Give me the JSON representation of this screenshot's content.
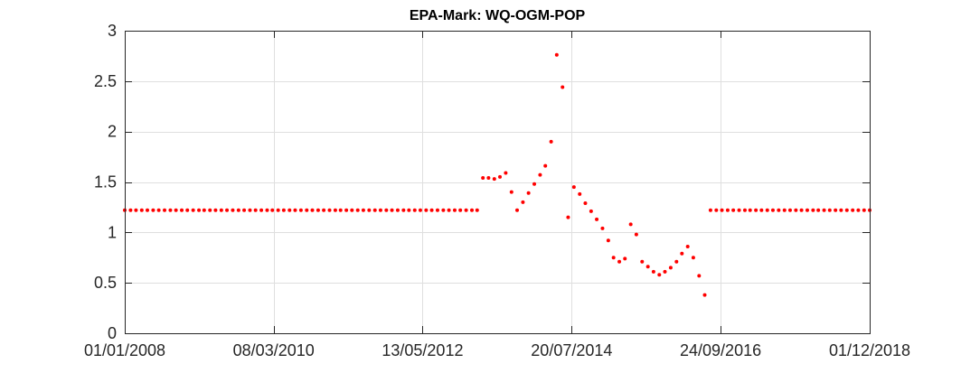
{
  "chart_data": {
    "type": "scatter",
    "title": "EPA-Mark: WQ-OGM-POP",
    "xlabel": "",
    "ylabel": "",
    "x_axis_type": "date",
    "xlim": [
      "2008-01-01",
      "2018-12-01"
    ],
    "ylim": [
      0,
      3
    ],
    "x_ticks": [
      {
        "date": "2008-01-01",
        "label": "01/01/2008"
      },
      {
        "date": "2010-03-08",
        "label": "08/03/2010"
      },
      {
        "date": "2012-05-13",
        "label": "13/05/2012"
      },
      {
        "date": "2014-07-20",
        "label": "20/07/2014"
      },
      {
        "date": "2016-09-24",
        "label": "24/09/2016"
      },
      {
        "date": "2018-12-01",
        "label": "01/12/2018"
      }
    ],
    "y_ticks": [
      0,
      0.5,
      1,
      1.5,
      2,
      2.5,
      3
    ],
    "y_tick_labels": [
      "0",
      "0.5",
      "1",
      "1.5",
      "2",
      "2.5",
      "3"
    ],
    "grid": true,
    "marker_color": "#ff0000",
    "series": [
      {
        "points": [
          {
            "x": "2008-01-01",
            "y": 1.22
          },
          {
            "x": "2008-02-01",
            "y": 1.22
          },
          {
            "x": "2008-03-01",
            "y": 1.22
          },
          {
            "x": "2008-04-01",
            "y": 1.22
          },
          {
            "x": "2008-05-01",
            "y": 1.22
          },
          {
            "x": "2008-06-01",
            "y": 1.22
          },
          {
            "x": "2008-07-01",
            "y": 1.22
          },
          {
            "x": "2008-08-01",
            "y": 1.22
          },
          {
            "x": "2008-09-01",
            "y": 1.22
          },
          {
            "x": "2008-10-01",
            "y": 1.22
          },
          {
            "x": "2008-11-01",
            "y": 1.22
          },
          {
            "x": "2008-12-01",
            "y": 1.22
          },
          {
            "x": "2009-01-01",
            "y": 1.22
          },
          {
            "x": "2009-02-01",
            "y": 1.22
          },
          {
            "x": "2009-03-01",
            "y": 1.22
          },
          {
            "x": "2009-04-01",
            "y": 1.22
          },
          {
            "x": "2009-05-01",
            "y": 1.22
          },
          {
            "x": "2009-06-01",
            "y": 1.22
          },
          {
            "x": "2009-07-01",
            "y": 1.22
          },
          {
            "x": "2009-08-01",
            "y": 1.22
          },
          {
            "x": "2009-09-01",
            "y": 1.22
          },
          {
            "x": "2009-10-01",
            "y": 1.22
          },
          {
            "x": "2009-11-01",
            "y": 1.22
          },
          {
            "x": "2009-12-01",
            "y": 1.22
          },
          {
            "x": "2010-01-01",
            "y": 1.22
          },
          {
            "x": "2010-02-01",
            "y": 1.22
          },
          {
            "x": "2010-03-01",
            "y": 1.22
          },
          {
            "x": "2010-04-01",
            "y": 1.22
          },
          {
            "x": "2010-05-01",
            "y": 1.22
          },
          {
            "x": "2010-06-01",
            "y": 1.22
          },
          {
            "x": "2010-07-01",
            "y": 1.22
          },
          {
            "x": "2010-08-01",
            "y": 1.22
          },
          {
            "x": "2010-09-01",
            "y": 1.22
          },
          {
            "x": "2010-10-01",
            "y": 1.22
          },
          {
            "x": "2010-11-01",
            "y": 1.22
          },
          {
            "x": "2010-12-01",
            "y": 1.22
          },
          {
            "x": "2011-01-01",
            "y": 1.22
          },
          {
            "x": "2011-02-01",
            "y": 1.22
          },
          {
            "x": "2011-03-01",
            "y": 1.22
          },
          {
            "x": "2011-04-01",
            "y": 1.22
          },
          {
            "x": "2011-05-01",
            "y": 1.22
          },
          {
            "x": "2011-06-01",
            "y": 1.22
          },
          {
            "x": "2011-07-01",
            "y": 1.22
          },
          {
            "x": "2011-08-01",
            "y": 1.22
          },
          {
            "x": "2011-09-01",
            "y": 1.22
          },
          {
            "x": "2011-10-01",
            "y": 1.22
          },
          {
            "x": "2011-11-01",
            "y": 1.22
          },
          {
            "x": "2011-12-01",
            "y": 1.22
          },
          {
            "x": "2012-01-01",
            "y": 1.22
          },
          {
            "x": "2012-02-01",
            "y": 1.22
          },
          {
            "x": "2012-03-01",
            "y": 1.22
          },
          {
            "x": "2012-04-01",
            "y": 1.22
          },
          {
            "x": "2012-05-01",
            "y": 1.22
          },
          {
            "x": "2012-06-01",
            "y": 1.22
          },
          {
            "x": "2012-07-01",
            "y": 1.22
          },
          {
            "x": "2012-08-01",
            "y": 1.22
          },
          {
            "x": "2012-09-01",
            "y": 1.22
          },
          {
            "x": "2012-10-01",
            "y": 1.22
          },
          {
            "x": "2012-11-01",
            "y": 1.22
          },
          {
            "x": "2012-12-01",
            "y": 1.22
          },
          {
            "x": "2013-01-01",
            "y": 1.22
          },
          {
            "x": "2013-02-01",
            "y": 1.22
          },
          {
            "x": "2013-03-01",
            "y": 1.22
          },
          {
            "x": "2013-04-01",
            "y": 1.54
          },
          {
            "x": "2013-05-01",
            "y": 1.54
          },
          {
            "x": "2013-06-01",
            "y": 1.53
          },
          {
            "x": "2013-07-01",
            "y": 1.55
          },
          {
            "x": "2013-08-01",
            "y": 1.59
          },
          {
            "x": "2013-09-01",
            "y": 1.4
          },
          {
            "x": "2013-10-01",
            "y": 1.22
          },
          {
            "x": "2013-11-01",
            "y": 1.3
          },
          {
            "x": "2013-12-01",
            "y": 1.39
          },
          {
            "x": "2014-01-01",
            "y": 1.48
          },
          {
            "x": "2014-02-01",
            "y": 1.57
          },
          {
            "x": "2014-03-01",
            "y": 1.66
          },
          {
            "x": "2014-04-01",
            "y": 1.9
          },
          {
            "x": "2014-05-01",
            "y": 2.76
          },
          {
            "x": "2014-06-01",
            "y": 2.44
          },
          {
            "x": "2014-07-01",
            "y": 1.15
          },
          {
            "x": "2014-08-01",
            "y": 1.45
          },
          {
            "x": "2014-09-01",
            "y": 1.38
          },
          {
            "x": "2014-10-01",
            "y": 1.29
          },
          {
            "x": "2014-11-01",
            "y": 1.21
          },
          {
            "x": "2014-12-01",
            "y": 1.13
          },
          {
            "x": "2015-01-01",
            "y": 1.04
          },
          {
            "x": "2015-02-01",
            "y": 0.92
          },
          {
            "x": "2015-03-01",
            "y": 0.75
          },
          {
            "x": "2015-04-01",
            "y": 0.71
          },
          {
            "x": "2015-05-01",
            "y": 0.74
          },
          {
            "x": "2015-06-01",
            "y": 1.08
          },
          {
            "x": "2015-07-01",
            "y": 0.98
          },
          {
            "x": "2015-08-01",
            "y": 0.71
          },
          {
            "x": "2015-09-01",
            "y": 0.66
          },
          {
            "x": "2015-10-01",
            "y": 0.61
          },
          {
            "x": "2015-11-01",
            "y": 0.58
          },
          {
            "x": "2015-12-01",
            "y": 0.61
          },
          {
            "x": "2016-01-01",
            "y": 0.65
          },
          {
            "x": "2016-02-01",
            "y": 0.71
          },
          {
            "x": "2016-03-01",
            "y": 0.79
          },
          {
            "x": "2016-04-01",
            "y": 0.86
          },
          {
            "x": "2016-05-01",
            "y": 0.75
          },
          {
            "x": "2016-06-01",
            "y": 0.57
          },
          {
            "x": "2016-07-01",
            "y": 0.38
          },
          {
            "x": "2016-08-01",
            "y": 1.22
          },
          {
            "x": "2016-09-01",
            "y": 1.22
          },
          {
            "x": "2016-10-01",
            "y": 1.22
          },
          {
            "x": "2016-11-01",
            "y": 1.22
          },
          {
            "x": "2016-12-01",
            "y": 1.22
          },
          {
            "x": "2017-01-01",
            "y": 1.22
          },
          {
            "x": "2017-02-01",
            "y": 1.22
          },
          {
            "x": "2017-03-01",
            "y": 1.22
          },
          {
            "x": "2017-04-01",
            "y": 1.22
          },
          {
            "x": "2017-05-01",
            "y": 1.22
          },
          {
            "x": "2017-06-01",
            "y": 1.22
          },
          {
            "x": "2017-07-01",
            "y": 1.22
          },
          {
            "x": "2017-08-01",
            "y": 1.22
          },
          {
            "x": "2017-09-01",
            "y": 1.22
          },
          {
            "x": "2017-10-01",
            "y": 1.22
          },
          {
            "x": "2017-11-01",
            "y": 1.22
          },
          {
            "x": "2017-12-01",
            "y": 1.22
          },
          {
            "x": "2018-01-01",
            "y": 1.22
          },
          {
            "x": "2018-02-01",
            "y": 1.22
          },
          {
            "x": "2018-03-01",
            "y": 1.22
          },
          {
            "x": "2018-04-01",
            "y": 1.22
          },
          {
            "x": "2018-05-01",
            "y": 1.22
          },
          {
            "x": "2018-06-01",
            "y": 1.22
          },
          {
            "x": "2018-07-01",
            "y": 1.22
          },
          {
            "x": "2018-08-01",
            "y": 1.22
          },
          {
            "x": "2018-09-01",
            "y": 1.22
          },
          {
            "x": "2018-10-01",
            "y": 1.22
          },
          {
            "x": "2018-11-01",
            "y": 1.22
          },
          {
            "x": "2018-12-01",
            "y": 1.22
          }
        ]
      }
    ]
  }
}
